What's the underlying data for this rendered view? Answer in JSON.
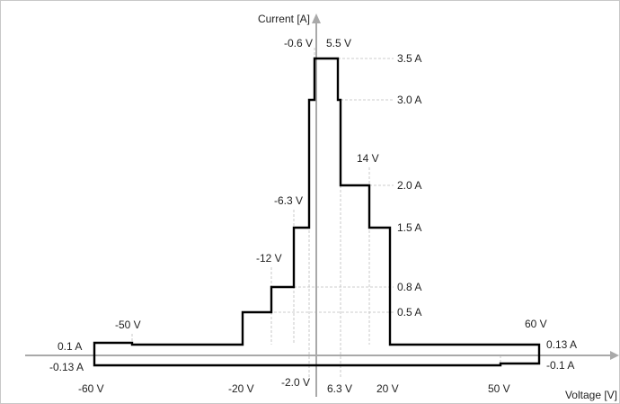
{
  "diagram": {
    "y_axis_label": "Current [A]",
    "x_axis_label": "Voltage [V]",
    "labels": {
      "v_neg_0_6": "-0.6 V",
      "v_5_5": "5.5 V",
      "a_3_5": "3.5 A",
      "a_3_0": "3.0 A",
      "v_14": "14 V",
      "a_2_0": "2.0 A",
      "v_neg_6_3": "-6.3 V",
      "a_1_5": "1.5 A",
      "v_neg_12": "-12 V",
      "a_0_8": "0.8 A",
      "a_0_5": "0.5 A",
      "v_neg_50": "-50 V",
      "v_60": "60 V",
      "a_0_1": "0.1 A",
      "a_0_13": "0.13 A",
      "a_neg_0_13": "-0.13 A",
      "a_neg_0_1": "-0.1 A",
      "v_neg_60": "-60 V",
      "v_neg_20": "-20 V",
      "v_neg_2_0": "-2.0 V",
      "v_6_3": "6.3 V",
      "v_20": "20 V",
      "v_50": "50 V"
    }
  }
}
